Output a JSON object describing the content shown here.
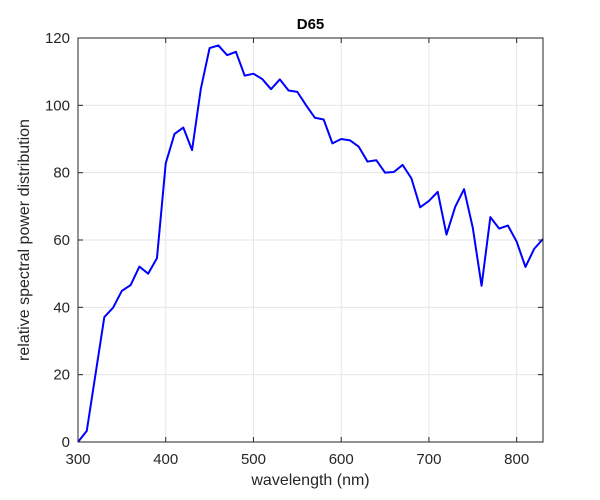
{
  "chart_data": {
    "type": "line",
    "title": "D65",
    "xlabel": "wavelength (nm)",
    "ylabel": "relative spectral power distribution",
    "xlim": [
      300,
      830
    ],
    "ylim": [
      0,
      120
    ],
    "xticks": [
      300,
      400,
      500,
      600,
      700,
      800
    ],
    "yticks": [
      0,
      20,
      40,
      60,
      80,
      100,
      120
    ],
    "xtick_labels": [
      "300",
      "400",
      "500",
      "600",
      "700",
      "800"
    ],
    "ytick_labels": [
      "0",
      "20",
      "40",
      "60",
      "80",
      "100",
      "120"
    ],
    "grid": true,
    "box": true,
    "colors": {
      "line": "#0000ff",
      "grid": "#e6e6e6",
      "axis": "#262626"
    },
    "series": [
      {
        "x": [
          300,
          310,
          320,
          330,
          340,
          350,
          360,
          370,
          380,
          390,
          400,
          410,
          420,
          430,
          440,
          450,
          460,
          470,
          480,
          490,
          500,
          510,
          520,
          530,
          540,
          550,
          560,
          570,
          580,
          590,
          600,
          610,
          620,
          630,
          640,
          650,
          660,
          670,
          680,
          690,
          700,
          710,
          720,
          730,
          740,
          750,
          760,
          770,
          780,
          790,
          800,
          810,
          820,
          830
        ],
        "values": [
          0.0,
          3.3,
          20.2,
          37.1,
          39.9,
          44.9,
          46.6,
          52.1,
          50.0,
          54.6,
          82.8,
          91.5,
          93.4,
          86.7,
          104.9,
          117.0,
          117.8,
          114.9,
          115.9,
          108.8,
          109.4,
          107.8,
          104.8,
          107.7,
          104.4,
          104.0,
          100.0,
          96.3,
          95.8,
          88.7,
          90.0,
          89.6,
          87.7,
          83.3,
          83.7,
          80.0,
          80.2,
          82.3,
          78.3,
          69.7,
          71.6,
          74.3,
          61.6,
          69.9,
          75.1,
          63.6,
          46.4,
          66.8,
          63.4,
          64.3,
          59.5,
          52.0,
          57.4,
          60.3
        ]
      }
    ]
  }
}
